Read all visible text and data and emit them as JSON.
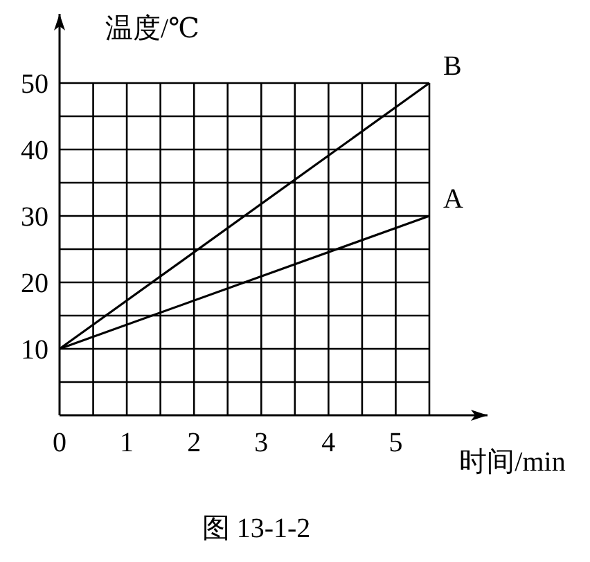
{
  "chart_data": {
    "type": "line",
    "xlabel": "时间/min",
    "ylabel": "温度/℃",
    "x": [
      0,
      5.5
    ],
    "series": [
      {
        "name": "A",
        "color": "#000000",
        "values": [
          10,
          30
        ]
      },
      {
        "name": "B",
        "color": "#000000",
        "values": [
          10,
          50
        ]
      }
    ],
    "xlim": [
      0,
      5.5
    ],
    "ylim": [
      0,
      50
    ],
    "xticks": [
      0,
      1,
      2,
      3,
      4,
      5
    ],
    "yticks": [
      10,
      20,
      30,
      40,
      50
    ],
    "grid": true,
    "annotations": [
      "图 13-1-2"
    ]
  }
}
